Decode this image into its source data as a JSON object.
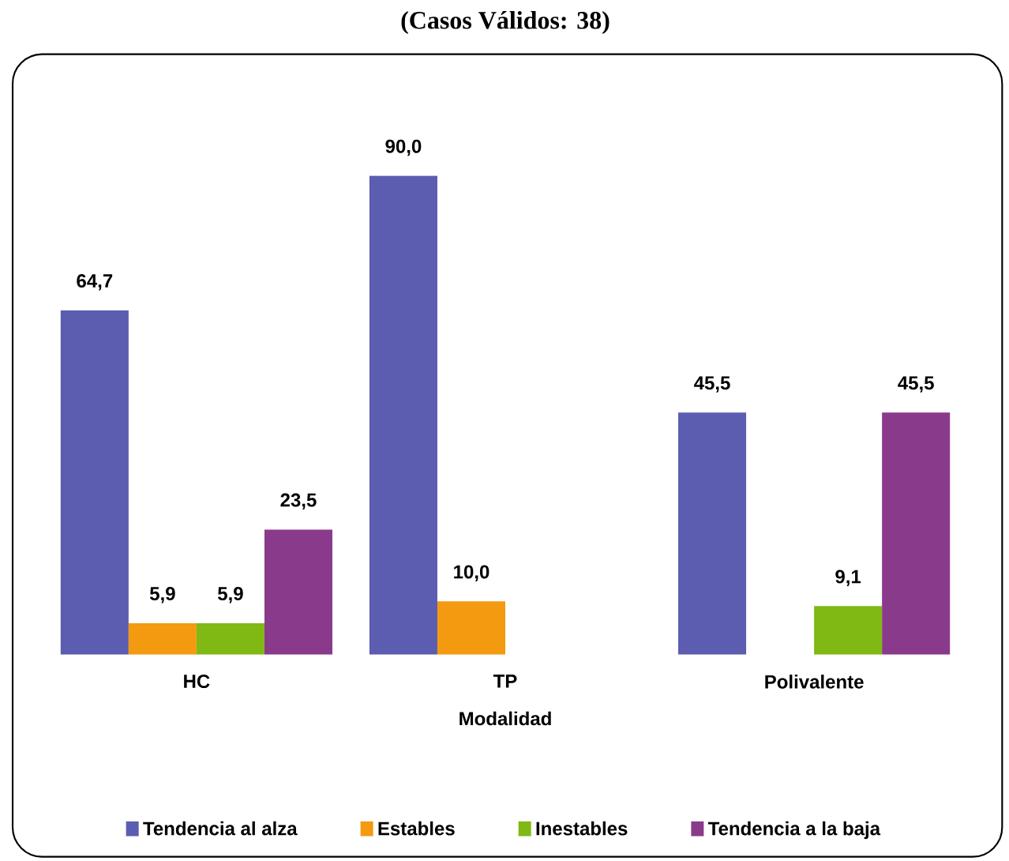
{
  "chart_data": {
    "type": "bar",
    "title": "(Casos Válidos: 38)",
    "xlabel": "Modalidad",
    "categories": [
      "HC",
      "TP",
      "Polivalente"
    ],
    "series": [
      {
        "name": "Tendencia al alza",
        "color": "#5c5cb0",
        "values": [
          64.7,
          90.0,
          45.5
        ],
        "value_labels": [
          "64,7",
          "90,0",
          "45,5"
        ]
      },
      {
        "name": "Estables",
        "color": "#f39a10",
        "values": [
          5.9,
          10.0,
          null
        ],
        "value_labels": [
          "5,9",
          "10,0",
          null
        ]
      },
      {
        "name": "Inestables",
        "color": "#80b814",
        "values": [
          5.9,
          null,
          9.1
        ],
        "value_labels": [
          "5,9",
          null,
          "9,1"
        ]
      },
      {
        "name": "Tendencia a la baja",
        "color": "#8a3a8a",
        "values": [
          23.5,
          null,
          45.5
        ],
        "value_labels": [
          "23,5",
          null,
          "45,5"
        ]
      }
    ],
    "legend": "bottom"
  }
}
